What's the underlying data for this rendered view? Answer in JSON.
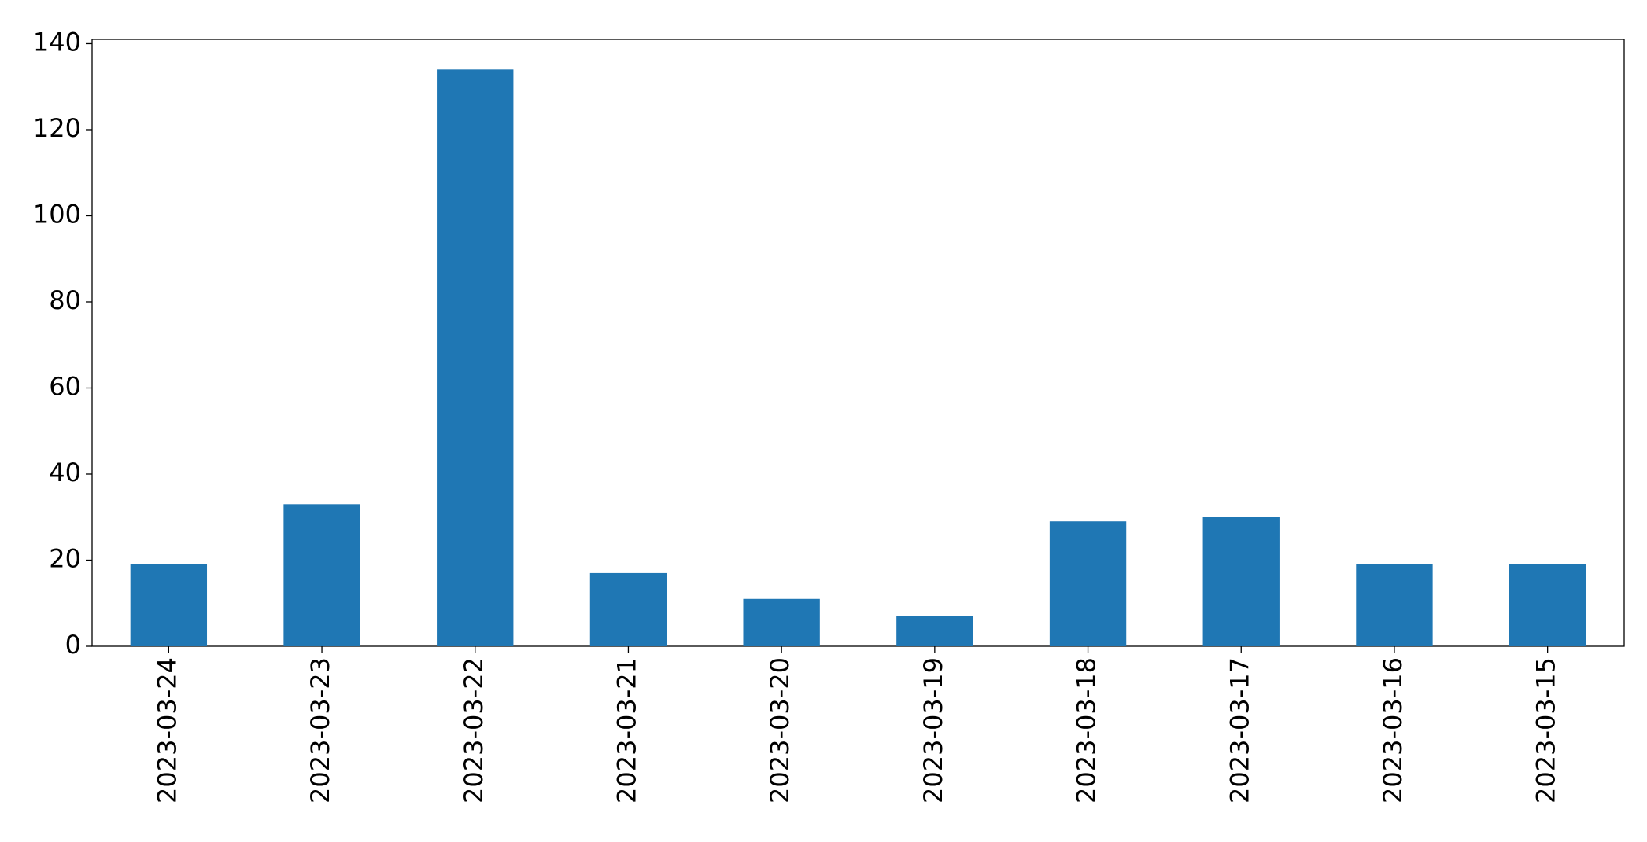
{
  "chart_data": {
    "type": "bar",
    "categories": [
      "2023-03-24",
      "2023-03-23",
      "2023-03-22",
      "2023-03-21",
      "2023-03-20",
      "2023-03-19",
      "2023-03-18",
      "2023-03-17",
      "2023-03-16",
      "2023-03-15"
    ],
    "values": [
      19,
      33,
      134,
      17,
      11,
      7,
      29,
      30,
      19,
      19
    ],
    "color": "#1f77b4",
    "ylim": [
      0,
      141
    ],
    "yticks": [
      0,
      20,
      40,
      60,
      80,
      100,
      120,
      140
    ],
    "grid": false
  }
}
